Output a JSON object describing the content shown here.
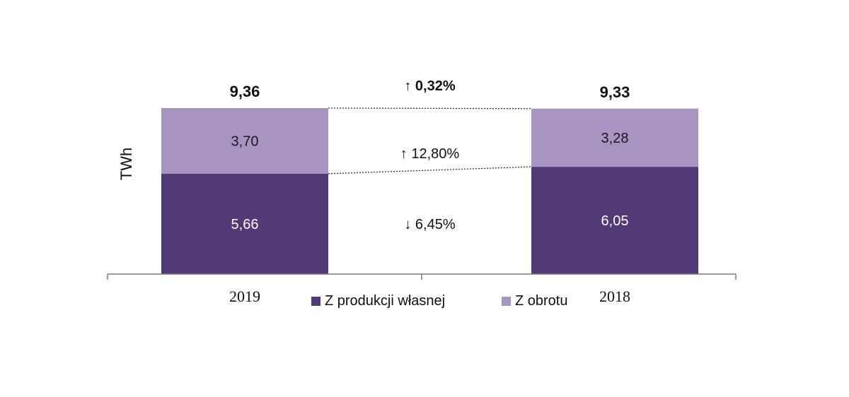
{
  "chart_data": {
    "type": "bar",
    "stacked": true,
    "categories": [
      "2019",
      "2018"
    ],
    "series": [
      {
        "name": "Z produkcji własnej",
        "values": [
          5.66,
          6.05
        ],
        "color": "#523a78"
      },
      {
        "name": "Z obrotu",
        "values": [
          3.7,
          3.28
        ],
        "color": "#a794c1"
      }
    ],
    "value_labels": [
      [
        "5,66",
        "6,05"
      ],
      [
        "3,70",
        "3,28"
      ]
    ],
    "totals": [
      {
        "value": 9.36,
        "label": "9,36"
      },
      {
        "value": 9.33,
        "label": "9,33"
      }
    ],
    "changes": {
      "total": {
        "direction": "up",
        "label": "0,32%"
      },
      "Z obrotu": {
        "direction": "up",
        "label": "12,80%"
      },
      "Z produkcji własnej": {
        "direction": "down",
        "label": "6,45%"
      }
    },
    "ylabel": "TWh",
    "xlabel": "",
    "ylim": [
      0,
      9.36
    ],
    "grid": false,
    "legend": "bottom"
  }
}
